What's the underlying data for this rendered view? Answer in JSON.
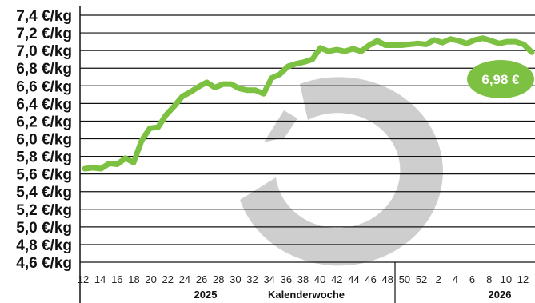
{
  "chart_data": {
    "type": "line",
    "ylim": [
      4.6,
      7.4
    ],
    "y_ticks": [
      "4,6 €/kg",
      "4,8 €/kg",
      "5,0 €/kg",
      "5,2 €/kg",
      "5,4 €/kg",
      "5,6 €/kg",
      "5,8 €/kg",
      "6,0 €/kg",
      "6,2 €/kg",
      "6,4 €/kg",
      "6,6 €/kg",
      "6,8 €/kg",
      "7,0 €/kg",
      "7,2 €/kg",
      "7,4 €/kg"
    ],
    "x_ticks": [
      "12",
      "14",
      "16",
      "18",
      "20",
      "22",
      "24",
      "26",
      "28",
      "30",
      "32",
      "34",
      "36",
      "38",
      "40",
      "42",
      "44",
      "46",
      "48",
      "50",
      "52",
      "2",
      "4",
      "6",
      "8",
      "10",
      "12"
    ],
    "xlabel": "Kalenderwoche",
    "years": [
      "2025",
      "2026"
    ],
    "series": [
      {
        "color": "#7dc142",
        "values": [
          5.66,
          5.67,
          5.66,
          5.72,
          5.71,
          5.78,
          5.73,
          5.98,
          6.12,
          6.13,
          6.27,
          6.37,
          6.48,
          6.53,
          6.59,
          6.64,
          6.58,
          6.62,
          6.62,
          6.57,
          6.55,
          6.55,
          6.51,
          6.69,
          6.73,
          6.82,
          6.85,
          6.87,
          6.9,
          7.03,
          6.99,
          7.01,
          6.99,
          7.02,
          6.99,
          7.06,
          7.11,
          7.06,
          7.06,
          7.06,
          7.07,
          7.08,
          7.07,
          7.12,
          7.09,
          7.13,
          7.11,
          7.08,
          7.12,
          7.14,
          7.11,
          7.08,
          7.1,
          7.1,
          7.07,
          6.98
        ]
      }
    ],
    "current_value_label": "6,98 €",
    "grid": true
  }
}
